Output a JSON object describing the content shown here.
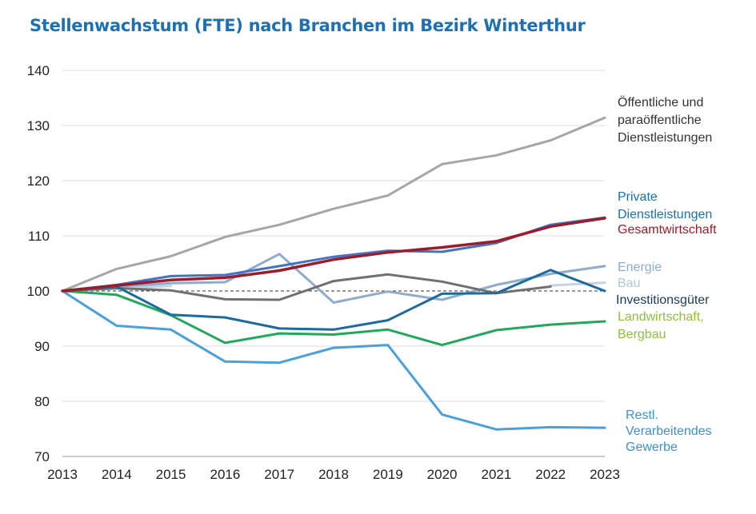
{
  "title": "Stellenwachstum (FTE) nach Branchen im Bezirk Winterthur",
  "chart_data": {
    "type": "line",
    "title": "Stellenwachstum (FTE) nach Branchen im Bezirk Winterthur",
    "xlabel": "",
    "ylabel": "",
    "x": [
      2013,
      2014,
      2015,
      2016,
      2017,
      2018,
      2019,
      2020,
      2021,
      2022,
      2023
    ],
    "ylim": [
      70,
      140
    ],
    "yticks": [
      70,
      80,
      90,
      100,
      110,
      120,
      130,
      140
    ],
    "grid": "horizontal",
    "reference_line": 100,
    "series": [
      {
        "name": "Öffentliche und paraöffentliche Dienstleistungen",
        "label_lines": [
          "Öffentliche und",
          "paraöffentliche",
          "Dienstleistungen"
        ],
        "color": "#a6a6a6",
        "label_color": "#333333",
        "values": [
          100,
          104.0,
          106.3,
          109.8,
          112.0,
          114.9,
          117.3,
          123.0,
          124.6,
          127.3,
          131.4
        ]
      },
      {
        "name": "Private Dienstleistungen",
        "label_lines": [
          "Private",
          "Dienstleistungen"
        ],
        "color": "#4472c4",
        "label_color": "#1f6fa8",
        "values": [
          100,
          101.1,
          102.7,
          102.9,
          104.5,
          106.2,
          107.3,
          107.1,
          108.7,
          112.0,
          113.3
        ]
      },
      {
        "name": "Gesamtwirtschaft",
        "label_lines": [
          "Gesamtwirtschaft"
        ],
        "color": "#9b1c2a",
        "label_color": "#9b1c2a",
        "values": [
          100,
          101.0,
          102.0,
          102.4,
          103.7,
          105.7,
          107.0,
          107.9,
          109.0,
          111.7,
          113.2
        ]
      },
      {
        "name": "Energie",
        "label_lines": [
          "Energie"
        ],
        "color": "#8eaccc",
        "label_color": "#8eaccc",
        "values": [
          100,
          100.7,
          101.4,
          101.6,
          106.7,
          97.9,
          99.9,
          98.4,
          101.1,
          103.1,
          104.5
        ]
      },
      {
        "name": "Bau",
        "label_lines": [
          "Bau"
        ],
        "color": "#c5d3e3",
        "label_color": "#b4c6da",
        "values": [
          100,
          100.4,
          100.9,
          null,
          null,
          null,
          null,
          null,
          null,
          101.0,
          101.5
        ]
      },
      {
        "name": "Investitionsgüter",
        "label_lines": [
          "Investitionsgüter"
        ],
        "color": "#1c6aa0",
        "label_color": "#1e3a55",
        "values": [
          100,
          100.8,
          95.7,
          95.2,
          93.2,
          93.0,
          94.7,
          99.5,
          99.6,
          103.8,
          100.0
        ]
      },
      {
        "name": "Bau (grau)",
        "label_lines": [],
        "color": "#707070",
        "label_color": "#707070",
        "values": [
          100,
          100.5,
          100.1,
          98.5,
          98.4,
          101.8,
          103.0,
          101.7,
          99.6,
          100.8,
          null
        ]
      },
      {
        "name": "Landwirtschaft, Bergbau",
        "label_lines": [
          "Landwirtschaft,",
          "Bergbau"
        ],
        "color": "#22a85a",
        "label_color": "#8dbf45",
        "values": [
          100,
          99.3,
          95.6,
          90.6,
          92.3,
          92.1,
          93.0,
          90.2,
          92.9,
          93.9,
          94.5
        ]
      },
      {
        "name": "Restl. Verarbeitendes Gewerbe",
        "label_lines": [
          "Restl.",
          "Verarbeitendes",
          "Gewerbe"
        ],
        "color": "#4b9fda",
        "label_color": "#3d8fd0",
        "values": [
          100,
          93.7,
          93.0,
          87.2,
          87.0,
          89.7,
          90.2,
          77.6,
          74.9,
          75.3,
          75.2
        ]
      }
    ]
  }
}
